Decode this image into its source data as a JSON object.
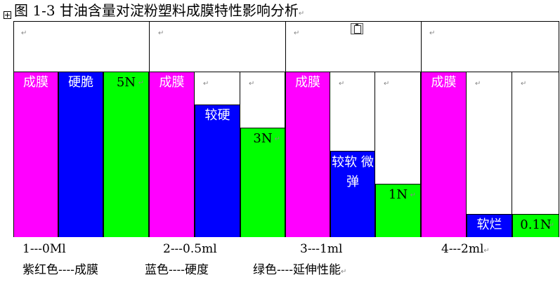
{
  "caption": "图 1-3 甘油含量对淀粉塑料成膜特性影响分析",
  "para_mark": "↵",
  "colors": {
    "magenta": "#ff00ff",
    "blue": "#0000ff",
    "green": "#00ff00"
  },
  "chart_data": {
    "type": "bar",
    "categories": [
      "1---0Ml",
      "2---0.5ml",
      "3---1ml",
      "4---2ml"
    ],
    "series": [
      {
        "name": "成膜",
        "color": "#ff00ff",
        "values": [
          1,
          1,
          1,
          1
        ],
        "labels": [
          "成膜",
          "成膜",
          "成膜",
          "成膜"
        ]
      },
      {
        "name": "硬度",
        "color": "#0000ff",
        "values": [
          1.0,
          0.8,
          0.52,
          0.14
        ],
        "labels": [
          "硬脆",
          "较硬",
          "较软 微弹",
          "软烂"
        ]
      },
      {
        "name": "延伸性能",
        "color": "#00ff00",
        "values": [
          1.0,
          0.66,
          0.32,
          0.14
        ],
        "labels": [
          "5N",
          "3N",
          "1N",
          "0.1N"
        ]
      }
    ],
    "ylim": [
      0,
      1
    ]
  },
  "x_labels": [
    "1---0Ml",
    "2---0.5ml",
    "3---1ml",
    "4---2ml"
  ],
  "legend": {
    "magenta": "紫红色----成膜",
    "blue": "蓝色----硬度",
    "green": "绿色----延伸性能"
  }
}
